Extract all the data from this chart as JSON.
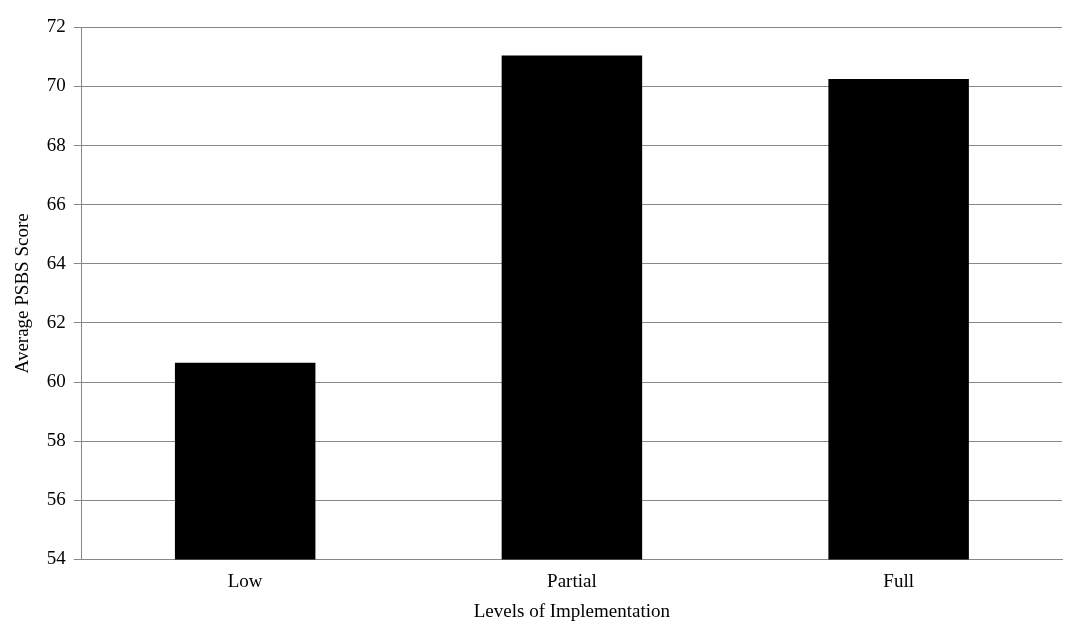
{
  "chart_data": {
    "type": "bar",
    "xlabel": "Levels of Implementation",
    "ylabel": "Average PSBS Score",
    "categories": [
      "Low",
      "Partial",
      "Full"
    ],
    "values": [
      60.65,
      71.05,
      70.25
    ],
    "color": "#000000",
    "ylim": [
      54,
      72
    ],
    "yticks": [
      54,
      56,
      58,
      60,
      62,
      64,
      66,
      68,
      70,
      72
    ],
    "grid": "y"
  }
}
